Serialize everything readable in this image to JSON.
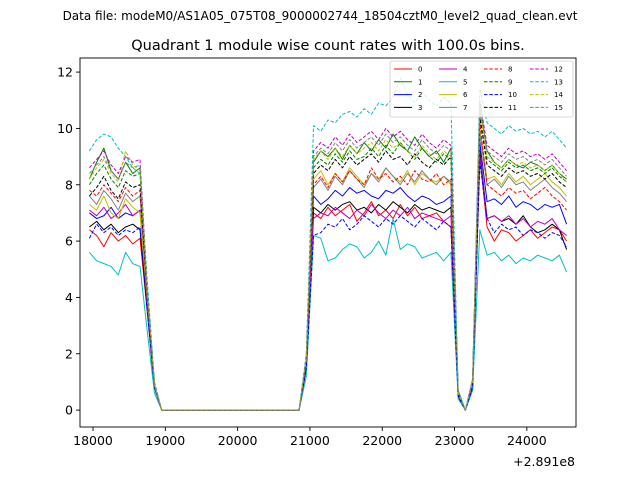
{
  "chart_data": {
    "type": "line",
    "suptitle": "Data file: modeM0/AS1A05_075T08_9000002744_18504cztM0_level2_quad_clean.evt",
    "title": "Quadrant 1 module wise count rates with 100.0s bins.",
    "xlabel": "",
    "ylabel": "",
    "x_offset_label": "+2.891e8",
    "xlim": [
      17820,
      24680
    ],
    "ylim": [
      -0.6,
      12.5
    ],
    "x_ticks": [
      18000,
      19000,
      20000,
      21000,
      22000,
      23000,
      24000
    ],
    "y_ticks": [
      0,
      2,
      4,
      6,
      8,
      10,
      12
    ],
    "x_tick_labels": [
      "18000",
      "19000",
      "20000",
      "21000",
      "22000",
      "23000",
      "24000"
    ],
    "y_tick_labels": [
      "0",
      "2",
      "4",
      "6",
      "8",
      "10",
      "12"
    ],
    "grid": false,
    "legend_position": "top-right",
    "x": [
      17950,
      18050,
      18150,
      18250,
      18350,
      18450,
      18550,
      18650,
      18750,
      18850,
      18950,
      19050,
      19150,
      19250,
      19350,
      19450,
      19550,
      19650,
      19750,
      19850,
      19950,
      20050,
      20150,
      20250,
      20350,
      20450,
      20550,
      20650,
      20750,
      20850,
      20950,
      21050,
      21150,
      21250,
      21350,
      21450,
      21550,
      21650,
      21750,
      21850,
      21950,
      22050,
      22150,
      22250,
      22350,
      22450,
      22550,
      22650,
      22750,
      22850,
      22950,
      23050,
      23150,
      23250,
      23350,
      23450,
      23550,
      23650,
      23750,
      23850,
      23950,
      24050,
      24150,
      24250,
      24350,
      24450,
      24550
    ],
    "series": [
      {
        "name": "0",
        "color": "#ff0000",
        "dash": false,
        "values": [
          6.4,
          6.2,
          5.8,
          6.3,
          6.0,
          6.2,
          5.9,
          6.1,
          3.5,
          0.8,
          0,
          0,
          0,
          0,
          0,
          0,
          0,
          0,
          0,
          0,
          0,
          0,
          0,
          0,
          0,
          0,
          0,
          0,
          0,
          0,
          1.5,
          7.0,
          6.8,
          7.2,
          6.9,
          7.1,
          7.3,
          6.7,
          7.0,
          7.4,
          6.9,
          7.1,
          6.8,
          7.3,
          6.9,
          7.2,
          6.8,
          6.9,
          7.0,
          6.7,
          6.5,
          0.5,
          0,
          0.8,
          9.0,
          6.5,
          6.0,
          6.4,
          6.3,
          6.0,
          6.2,
          6.4,
          6.1,
          6.3,
          6.5,
          6.4,
          6.0
        ]
      },
      {
        "name": "1",
        "color": "#008000",
        "dash": false,
        "values": [
          8.2,
          8.8,
          9.3,
          8.5,
          8.2,
          8.8,
          8.4,
          8.6,
          4.2,
          0.9,
          0,
          0,
          0,
          0,
          0,
          0,
          0,
          0,
          0,
          0,
          0,
          0,
          0,
          0,
          0,
          0,
          0,
          0,
          0,
          0,
          1.8,
          8.8,
          9.2,
          9.0,
          9.3,
          8.9,
          9.4,
          9.1,
          9.5,
          9.2,
          9.6,
          9.3,
          9.8,
          9.4,
          9.2,
          9.7,
          9.3,
          9.0,
          9.2,
          8.8,
          9.3,
          0.6,
          0,
          1.0,
          10.8,
          9.2,
          8.8,
          8.6,
          8.9,
          8.7,
          8.6,
          8.8,
          8.7,
          8.5,
          8.7,
          8.4,
          8.2
        ]
      },
      {
        "name": "2",
        "color": "#0000ff",
        "dash": false,
        "values": [
          7.0,
          6.8,
          6.9,
          7.2,
          6.8,
          7.0,
          6.9,
          7.1,
          3.8,
          0.8,
          0,
          0,
          0,
          0,
          0,
          0,
          0,
          0,
          0,
          0,
          0,
          0,
          0,
          0,
          0,
          0,
          0,
          0,
          0,
          0,
          1.6,
          7.6,
          7.3,
          7.5,
          7.8,
          7.6,
          7.9,
          7.7,
          7.8,
          7.6,
          7.5,
          7.8,
          7.7,
          7.9,
          7.6,
          7.4,
          7.6,
          7.5,
          7.3,
          7.4,
          7.6,
          0.5,
          0,
          0.9,
          9.5,
          7.4,
          7.5,
          7.3,
          7.6,
          7.2,
          7.4,
          7.3,
          7.1,
          7.3,
          7.2,
          7.3,
          6.6
        ]
      },
      {
        "name": "3",
        "color": "#000000",
        "dash": false,
        "values": [
          6.5,
          6.7,
          6.4,
          6.6,
          6.3,
          6.5,
          6.6,
          6.4,
          3.6,
          0.8,
          0,
          0,
          0,
          0,
          0,
          0,
          0,
          0,
          0,
          0,
          0,
          0,
          0,
          0,
          0,
          0,
          0,
          0,
          0,
          0,
          1.5,
          7.2,
          7.0,
          7.3,
          7.1,
          7.3,
          7.4,
          7.1,
          7.2,
          7.0,
          7.3,
          7.1,
          7.4,
          7.2,
          7.0,
          7.3,
          7.1,
          7.2,
          7.1,
          7.0,
          7.2,
          0.5,
          0,
          0.8,
          9.2,
          6.8,
          6.9,
          6.7,
          6.8,
          6.6,
          6.9,
          6.5,
          6.3,
          6.4,
          6.6,
          6.4,
          5.7
        ]
      },
      {
        "name": "4",
        "color": "#bf00bf",
        "dash": false,
        "values": [
          7.1,
          6.9,
          7.2,
          6.8,
          7.0,
          7.3,
          6.9,
          7.1,
          3.7,
          0.8,
          0,
          0,
          0,
          0,
          0,
          0,
          0,
          0,
          0,
          0,
          0,
          0,
          0,
          0,
          0,
          0,
          0,
          0,
          0,
          0,
          1.6,
          6.8,
          7.0,
          6.9,
          7.2,
          7.0,
          6.8,
          7.1,
          6.9,
          7.3,
          7.0,
          6.8,
          7.1,
          6.9,
          7.2,
          6.8,
          7.0,
          6.9,
          6.8,
          6.7,
          6.9,
          0.5,
          0,
          0.9,
          9.0,
          6.8,
          6.9,
          6.7,
          6.9,
          6.6,
          6.8,
          6.5,
          6.7,
          6.6,
          6.8,
          6.4,
          6.2
        ]
      },
      {
        "name": "5",
        "color": "#00bfbf",
        "dash": false,
        "values": [
          5.6,
          5.3,
          5.2,
          5.1,
          4.8,
          5.6,
          5.2,
          5.1,
          2.8,
          0.6,
          0,
          0,
          0,
          0,
          0,
          0,
          0,
          0,
          0,
          0,
          0,
          0,
          0,
          0,
          0,
          0,
          0,
          0,
          0,
          0,
          1.2,
          6.2,
          6.1,
          5.3,
          5.4,
          5.7,
          5.9,
          5.8,
          5.4,
          5.6,
          6.0,
          5.5,
          6.8,
          5.7,
          5.9,
          5.8,
          5.4,
          5.5,
          5.6,
          5.3,
          5.6,
          0.4,
          0,
          0.7,
          6.4,
          5.5,
          5.6,
          5.3,
          5.5,
          5.2,
          5.4,
          5.3,
          5.5,
          5.4,
          5.3,
          5.5,
          4.9
        ]
      },
      {
        "name": "6",
        "color": "#bfbf00",
        "dash": false,
        "values": [
          7.3,
          7.1,
          7.6,
          7.0,
          6.8,
          7.5,
          7.2,
          7.0,
          3.9,
          0.8,
          0,
          0,
          0,
          0,
          0,
          0,
          0,
          0,
          0,
          0,
          0,
          0,
          0,
          0,
          0,
          0,
          0,
          0,
          0,
          0,
          1.7,
          8.2,
          8.5,
          8.0,
          8.4,
          8.1,
          8.6,
          8.3,
          8.0,
          8.4,
          8.2,
          8.6,
          8.3,
          8.1,
          8.5,
          8.0,
          8.4,
          8.2,
          8.1,
          8.3,
          8.0,
          0.6,
          0,
          1.0,
          10.0,
          8.2,
          8.3,
          8.0,
          8.4,
          8.1,
          8.3,
          8.0,
          8.2,
          8.4,
          8.1,
          7.9,
          7.6
        ]
      },
      {
        "name": "7",
        "color": "#808080",
        "dash": false,
        "values": [
          7.6,
          7.3,
          7.8,
          7.5,
          7.1,
          7.7,
          7.4,
          7.6,
          4.0,
          0.8,
          0,
          0,
          0,
          0,
          0,
          0,
          0,
          0,
          0,
          0,
          0,
          0,
          0,
          0,
          0,
          0,
          0,
          0,
          0,
          0,
          1.7,
          7.9,
          8.2,
          7.8,
          8.3,
          8.0,
          8.5,
          8.2,
          7.9,
          8.4,
          8.1,
          8.6,
          8.3,
          8.0,
          8.4,
          8.1,
          8.5,
          8.2,
          8.0,
          8.3,
          8.1,
          0.6,
          0,
          1.0,
          9.8,
          8.0,
          8.2,
          7.9,
          8.3,
          8.0,
          8.1,
          7.8,
          8.0,
          8.2,
          7.9,
          7.7,
          7.4
        ]
      },
      {
        "name": "8",
        "color": "#ff0000",
        "dash": true,
        "values": [
          7.8,
          7.6,
          8.0,
          7.7,
          7.4,
          7.9,
          7.6,
          7.8,
          4.1,
          0.9,
          0,
          0,
          0,
          0,
          0,
          0,
          0,
          0,
          0,
          0,
          0,
          0,
          0,
          0,
          0,
          0,
          0,
          0,
          0,
          0,
          1.7,
          8.0,
          8.3,
          7.9,
          8.4,
          8.1,
          8.5,
          8.2,
          8.0,
          8.6,
          8.2,
          8.4,
          8.1,
          8.3,
          8.0,
          8.5,
          8.2,
          8.1,
          8.4,
          8.0,
          8.2,
          0.6,
          0,
          1.0,
          10.2,
          8.0,
          7.8,
          7.6,
          7.9,
          7.7,
          7.8,
          7.5,
          7.7,
          7.9,
          7.6,
          7.4,
          7.1
        ]
      },
      {
        "name": "9",
        "color": "#008000",
        "dash": true,
        "values": [
          8.0,
          8.4,
          8.7,
          8.2,
          7.9,
          8.5,
          8.3,
          8.4,
          4.3,
          0.9,
          0,
          0,
          0,
          0,
          0,
          0,
          0,
          0,
          0,
          0,
          0,
          0,
          0,
          0,
          0,
          0,
          0,
          0,
          0,
          0,
          1.8,
          8.6,
          8.9,
          8.7,
          9.1,
          8.8,
          9.2,
          8.9,
          9.0,
          9.3,
          9.0,
          9.4,
          9.1,
          9.5,
          9.2,
          8.9,
          9.3,
          9.0,
          8.8,
          9.1,
          8.9,
          0.6,
          0,
          1.0,
          10.6,
          8.9,
          8.7,
          8.5,
          8.8,
          8.6,
          8.7,
          8.5,
          8.6,
          8.4,
          8.6,
          8.3,
          8.1
        ]
      },
      {
        "name": "10",
        "color": "#0000ff",
        "dash": true,
        "values": [
          6.1,
          6.6,
          6.3,
          6.5,
          6.2,
          6.4,
          6.3,
          6.5,
          3.5,
          0.8,
          0,
          0,
          0,
          0,
          0,
          0,
          0,
          0,
          0,
          0,
          0,
          0,
          0,
          0,
          0,
          0,
          0,
          0,
          0,
          0,
          1.5,
          6.2,
          6.3,
          6.6,
          6.5,
          6.8,
          6.4,
          6.6,
          6.9,
          6.7,
          6.5,
          6.8,
          6.6,
          6.9,
          6.7,
          6.5,
          6.8,
          6.6,
          6.4,
          6.7,
          6.5,
          0.5,
          0,
          0.8,
          8.8,
          6.8,
          6.3,
          6.6,
          6.4,
          6.5,
          6.2,
          6.4,
          6.3,
          6.1,
          6.3,
          6.2,
          5.8
        ]
      },
      {
        "name": "11",
        "color": "#000000",
        "dash": true,
        "values": [
          7.6,
          7.9,
          8.3,
          7.8,
          7.5,
          8.1,
          7.9,
          8.0,
          4.1,
          0.9,
          0,
          0,
          0,
          0,
          0,
          0,
          0,
          0,
          0,
          0,
          0,
          0,
          0,
          0,
          0,
          0,
          0,
          0,
          0,
          0,
          1.8,
          8.4,
          8.7,
          8.5,
          8.9,
          8.6,
          9.0,
          8.7,
          8.9,
          9.1,
          8.8,
          9.2,
          8.9,
          9.0,
          8.7,
          9.1,
          8.8,
          8.6,
          8.9,
          8.7,
          9.0,
          0.6,
          0,
          1.0,
          10.4,
          8.7,
          8.5,
          8.3,
          8.6,
          8.4,
          8.5,
          8.3,
          8.4,
          8.2,
          8.4,
          8.1,
          7.9
        ]
      },
      {
        "name": "12",
        "color": "#bf00bf",
        "dash": true,
        "values": [
          8.6,
          8.9,
          9.2,
          8.7,
          8.4,
          9.0,
          8.8,
          8.9,
          4.4,
          0.9,
          0,
          0,
          0,
          0,
          0,
          0,
          0,
          0,
          0,
          0,
          0,
          0,
          0,
          0,
          0,
          0,
          0,
          0,
          0,
          0,
          1.9,
          9.2,
          9.5,
          9.3,
          9.7,
          9.4,
          9.8,
          9.5,
          9.7,
          9.9,
          9.6,
          10.0,
          9.7,
          9.9,
          9.6,
          9.4,
          9.8,
          9.5,
          9.3,
          9.6,
          9.4,
          0.7,
          0,
          1.1,
          11.0,
          9.4,
          9.2,
          9.0,
          9.3,
          9.1,
          9.2,
          9.0,
          9.1,
          8.9,
          9.1,
          8.8,
          8.5
        ]
      },
      {
        "name": "13",
        "color": "#00bfbf",
        "dash": true,
        "values": [
          9.2,
          9.6,
          9.8,
          9.7,
          9.3,
          9.0,
          8.6,
          8.4,
          4.6,
          1.0,
          0,
          0,
          0,
          0,
          0,
          0,
          0,
          0,
          0,
          0,
          0,
          0,
          0,
          0,
          0,
          0,
          0,
          0,
          0,
          0,
          2.0,
          10.1,
          9.9,
          10.3,
          10.2,
          10.5,
          10.6,
          10.4,
          10.7,
          10.5,
          10.9,
          10.8,
          11.1,
          11.8,
          11.2,
          10.9,
          11.3,
          11.0,
          10.8,
          11.1,
          10.9,
          0.7,
          0,
          1.1,
          11.4,
          10.2,
          10.0,
          9.8,
          10.1,
          9.9,
          10.0,
          9.8,
          9.9,
          9.7,
          9.9,
          9.6,
          9.3
        ]
      },
      {
        "name": "14",
        "color": "#bfbf00",
        "dash": true,
        "values": [
          8.2,
          8.6,
          8.9,
          8.4,
          8.1,
          9.2,
          8.7,
          8.5,
          4.2,
          0.9,
          0,
          0,
          0,
          0,
          0,
          0,
          0,
          0,
          0,
          0,
          0,
          0,
          0,
          0,
          0,
          0,
          0,
          0,
          0,
          0,
          1.8,
          8.9,
          9.2,
          8.9,
          9.3,
          9.0,
          9.4,
          9.1,
          9.3,
          9.5,
          9.2,
          9.6,
          9.3,
          9.5,
          9.2,
          9.0,
          9.4,
          9.1,
          8.9,
          9.2,
          9.0,
          0.6,
          0,
          1.0,
          10.7,
          9.0,
          8.8,
          8.6,
          8.9,
          8.7,
          8.8,
          8.6,
          8.7,
          8.5,
          8.7,
          8.4,
          8.1
        ]
      },
      {
        "name": "15",
        "color": "#808080",
        "dash": true,
        "values": [
          8.4,
          8.7,
          9.0,
          8.5,
          8.2,
          8.8,
          8.6,
          8.7,
          4.3,
          0.9,
          0,
          0,
          0,
          0,
          0,
          0,
          0,
          0,
          0,
          0,
          0,
          0,
          0,
          0,
          0,
          0,
          0,
          0,
          0,
          0,
          1.9,
          9.0,
          9.3,
          9.1,
          9.5,
          9.2,
          9.6,
          9.3,
          9.5,
          9.7,
          9.4,
          9.8,
          9.5,
          9.7,
          9.4,
          9.2,
          9.6,
          9.3,
          9.1,
          9.4,
          9.2,
          0.7,
          0,
          1.1,
          10.9,
          9.2,
          9.0,
          8.8,
          9.1,
          8.9,
          9.0,
          8.8,
          8.9,
          8.7,
          8.9,
          8.6,
          8.3
        ]
      }
    ]
  }
}
